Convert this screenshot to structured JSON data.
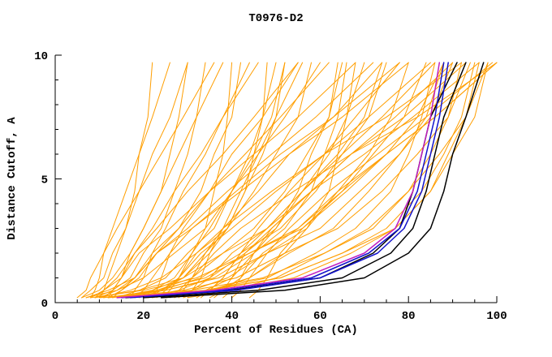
{
  "chart_data": {
    "type": "line",
    "title": "T0976-D2",
    "xlabel": "Percent of Residues (CA)",
    "ylabel": "Distance Cutoff, A",
    "xlim": [
      0,
      100
    ],
    "ylim": [
      0,
      10
    ],
    "xticks": [
      0,
      20,
      40,
      60,
      80,
      100
    ],
    "yticks": [
      0,
      5,
      10
    ],
    "x_minor_step": 5,
    "y_minor_step": 1,
    "grid": false,
    "legend": "none",
    "colors": {
      "orange": "#FF9E00",
      "black": "#000000",
      "blue": "#1313CC",
      "magenta": "#C020C0"
    },
    "y_samples": [
      0.2,
      0.5,
      1,
      2,
      3,
      4.5,
      6,
      7.5,
      9.7
    ],
    "series": [
      {
        "color": "orange",
        "x": [
          8,
          9,
          10,
          11,
          13,
          16,
          19,
          22,
          26
        ]
      },
      {
        "color": "orange",
        "x": [
          10,
          11,
          12,
          14,
          16,
          19,
          22,
          26,
          30
        ]
      },
      {
        "color": "orange",
        "x": [
          9,
          13,
          17,
          20,
          24,
          27,
          30,
          32,
          34
        ]
      },
      {
        "color": "orange",
        "x": [
          12,
          13,
          15,
          17,
          20,
          24,
          28,
          32,
          38
        ]
      },
      {
        "color": "orange",
        "x": [
          7,
          12,
          18,
          23,
          28,
          33,
          36,
          40,
          42
        ]
      },
      {
        "color": "orange",
        "x": [
          11,
          13,
          15,
          18,
          22,
          27,
          33,
          38,
          46
        ]
      },
      {
        "color": "orange",
        "x": [
          14,
          19,
          25,
          30,
          36,
          40,
          44,
          47,
          50
        ]
      },
      {
        "color": "orange",
        "x": [
          9,
          11,
          14,
          18,
          23,
          30,
          38,
          45,
          55
        ]
      },
      {
        "color": "orange",
        "x": [
          10,
          17,
          24,
          32,
          39,
          45,
          50,
          55,
          58
        ]
      },
      {
        "color": "orange",
        "x": [
          13,
          15,
          18,
          22,
          28,
          35,
          43,
          51,
          62
        ]
      },
      {
        "color": "orange",
        "x": [
          16,
          23,
          31,
          38,
          45,
          52,
          57,
          62,
          65
        ]
      },
      {
        "color": "orange",
        "x": [
          8,
          11,
          15,
          19,
          26,
          35,
          45,
          55,
          68
        ]
      },
      {
        "color": "orange",
        "x": [
          20,
          28,
          35,
          43,
          50,
          56,
          62,
          66,
          70
        ]
      },
      {
        "color": "orange",
        "x": [
          12,
          15,
          19,
          23,
          30,
          39,
          49,
          59,
          72
        ]
      },
      {
        "color": "orange",
        "x": [
          15,
          24,
          33,
          42,
          51,
          59,
          65,
          71,
          75
        ]
      },
      {
        "color": "orange",
        "x": [
          18,
          20,
          22,
          26,
          31,
          41,
          51,
          63,
          78
        ]
      },
      {
        "color": "orange",
        "x": [
          10,
          14,
          18,
          23,
          31,
          42,
          53,
          65,
          80
        ]
      },
      {
        "color": "orange",
        "x": [
          22,
          31,
          39,
          48,
          57,
          64,
          71,
          76,
          80
        ]
      },
      {
        "color": "orange",
        "x": [
          12,
          23,
          34,
          44,
          55,
          65,
          72,
          79,
          84
        ]
      },
      {
        "color": "orange",
        "x": [
          16,
          34,
          48,
          59,
          68,
          76,
          80,
          83,
          86
        ]
      },
      {
        "color": "orange",
        "x": [
          25,
          35,
          44,
          53,
          63,
          71,
          78,
          84,
          88
        ]
      },
      {
        "color": "orange",
        "x": [
          14,
          25,
          37,
          48,
          60,
          69,
          78,
          85,
          90
        ]
      },
      {
        "color": "orange",
        "x": [
          10,
          31,
          47,
          61,
          72,
          80,
          85,
          89,
          92
        ]
      },
      {
        "color": "orange",
        "x": [
          18,
          29,
          41,
          52,
          64,
          74,
          82,
          89,
          94
        ]
      },
      {
        "color": "orange",
        "x": [
          20,
          39,
          54,
          67,
          77,
          85,
          89,
          93,
          96
        ]
      },
      {
        "color": "orange",
        "x": [
          30,
          40,
          50,
          61,
          71,
          80,
          87,
          93,
          98
        ]
      },
      {
        "color": "orange",
        "x": [
          26,
          28,
          31,
          36,
          42,
          54,
          67,
          82,
          100
        ]
      },
      {
        "color": "orange",
        "x": [
          35,
          38,
          42,
          47,
          55,
          64,
          75,
          86,
          100
        ]
      },
      {
        "color": "orange",
        "x": [
          6,
          10,
          13,
          17,
          20,
          24,
          26,
          28,
          30
        ]
      },
      {
        "color": "orange",
        "x": [
          17,
          18,
          20,
          22,
          25,
          29,
          34,
          38,
          44
        ]
      },
      {
        "color": "orange",
        "x": [
          24,
          26,
          28,
          31,
          35,
          40,
          46,
          52,
          60
        ]
      },
      {
        "color": "orange",
        "x": [
          28,
          29,
          31,
          34,
          38,
          46,
          53,
          63,
          74
        ]
      },
      {
        "color": "orange",
        "x": [
          19,
          24,
          29,
          34,
          39,
          43,
          47,
          50,
          52
        ]
      },
      {
        "color": "orange",
        "x": [
          21,
          24,
          28,
          33,
          40,
          50,
          61,
          71,
          85
        ]
      },
      {
        "color": "orange",
        "x": [
          11,
          25,
          36,
          45,
          52,
          58,
          61,
          64,
          66
        ]
      },
      {
        "color": "orange",
        "x": [
          13,
          22,
          29,
          35,
          39,
          43,
          45,
          47,
          48
        ]
      },
      {
        "color": "orange",
        "x": [
          23,
          25,
          28,
          32,
          38,
          49,
          61,
          75,
          92
        ]
      },
      {
        "color": "orange",
        "x": [
          27,
          31,
          35,
          40,
          48,
          58,
          70,
          81,
          96
        ]
      },
      {
        "color": "orange",
        "x": [
          8,
          20,
          32,
          44,
          56,
          66,
          75,
          82,
          88
        ]
      },
      {
        "color": "orange",
        "x": [
          32,
          35,
          38,
          42,
          48,
          56,
          65,
          74,
          86
        ]
      },
      {
        "color": "orange",
        "x": [
          9,
          19,
          29,
          38,
          48,
          56,
          64,
          70,
          74
        ]
      },
      {
        "color": "orange",
        "x": [
          15,
          35,
          51,
          65,
          75,
          83,
          88,
          92,
          95
        ]
      },
      {
        "color": "orange",
        "x": [
          36,
          38,
          40,
          43,
          49,
          58,
          67,
          79,
          93
        ]
      },
      {
        "color": "orange",
        "x": [
          5,
          7,
          8,
          11,
          14,
          19,
          24,
          29,
          36
        ]
      },
      {
        "color": "orange",
        "x": [
          30,
          31,
          33,
          35,
          38,
          42,
          46,
          50,
          56
        ]
      },
      {
        "color": "orange",
        "x": [
          12,
          34,
          51,
          65,
          77,
          85,
          90,
          95,
          98
        ]
      },
      {
        "color": "orange",
        "x": [
          40,
          42,
          44,
          48,
          53,
          62,
          73,
          84,
          99
        ]
      },
      {
        "color": "orange",
        "x": [
          25,
          36,
          44,
          52,
          57,
          62,
          64,
          66,
          68
        ]
      },
      {
        "color": "orange",
        "x": [
          7,
          14,
          20,
          27,
          34,
          40,
          45,
          49,
          52
        ]
      },
      {
        "color": "orange",
        "x": [
          33,
          35,
          38,
          42,
          46,
          53,
          61,
          68,
          78
        ]
      },
      {
        "color": "orange",
        "x": [
          16,
          22,
          27,
          31,
          34,
          36,
          38,
          39,
          40
        ]
      },
      {
        "color": "orange",
        "x": [
          29,
          34,
          40,
          45,
          50,
          55,
          58,
          62,
          64
        ]
      },
      {
        "color": "orange",
        "x": [
          22,
          23,
          24,
          26,
          29,
          35,
          40,
          47,
          55
        ]
      },
      {
        "color": "orange",
        "x": [
          38,
          40,
          42,
          45,
          49,
          58,
          67,
          77,
          90
        ]
      },
      {
        "color": "orange",
        "x": [
          6,
          8,
          11,
          13,
          16,
          18,
          19,
          21,
          22
        ]
      },
      {
        "color": "orange",
        "x": [
          44,
          46,
          48,
          51,
          56,
          65,
          75,
          86,
          100
        ]
      },
      {
        "color": "black",
        "x": [
          16,
          40,
          60,
          72,
          78,
          81,
          83,
          85,
          91
        ]
      },
      {
        "color": "black",
        "x": [
          20,
          46,
          65,
          76,
          81,
          84,
          86,
          88,
          93
        ]
      },
      {
        "color": "black",
        "x": [
          24,
          52,
          70,
          80,
          85,
          88,
          90,
          93,
          97
        ]
      },
      {
        "color": "blue",
        "x": [
          15,
          38,
          58,
          71,
          78,
          82,
          84,
          86,
          88
        ]
      },
      {
        "color": "blue",
        "x": [
          17,
          41,
          60,
          73,
          79,
          83,
          85,
          87,
          89
        ]
      },
      {
        "color": "magenta",
        "x": [
          14,
          36,
          56,
          70,
          77,
          81,
          83,
          85,
          87
        ]
      }
    ]
  }
}
